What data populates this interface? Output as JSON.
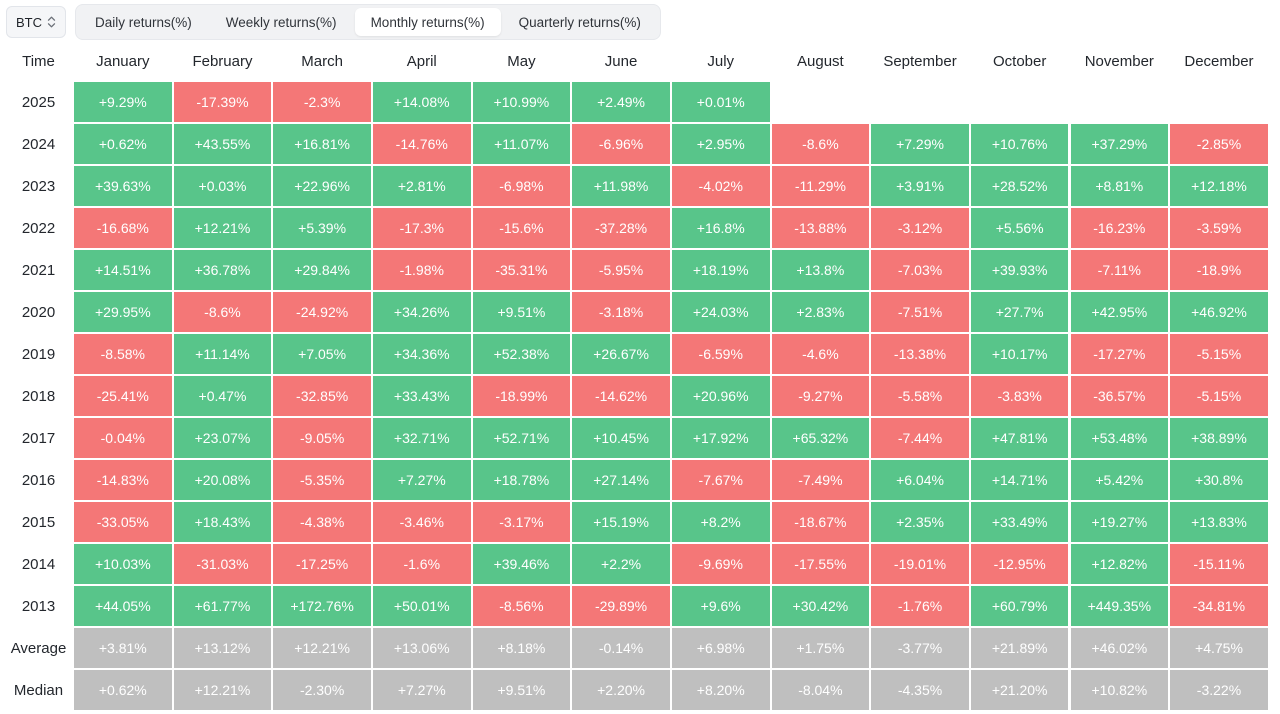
{
  "asset_select": {
    "label": "BTC",
    "icon": "updown-chevron-icon"
  },
  "tabs": [
    {
      "label": "Daily returns(%)",
      "active": false
    },
    {
      "label": "Weekly returns(%)",
      "active": false
    },
    {
      "label": "Monthly returns(%)",
      "active": true
    },
    {
      "label": "Quarterly returns(%)",
      "active": false
    }
  ],
  "colors": {
    "positive": "#58c58a",
    "negative": "#f47777",
    "summary": "#bfbfbf"
  },
  "chart_data": {
    "type": "table",
    "corner_label": "Time",
    "columns": [
      "January",
      "February",
      "March",
      "April",
      "May",
      "June",
      "July",
      "August",
      "September",
      "October",
      "November",
      "December"
    ],
    "rows": [
      {
        "label": "2025",
        "values": [
          "+9.29%",
          "-17.39%",
          "-2.3%",
          "+14.08%",
          "+10.99%",
          "+2.49%",
          "+0.01%",
          null,
          null,
          null,
          null,
          null
        ]
      },
      {
        "label": "2024",
        "values": [
          "+0.62%",
          "+43.55%",
          "+16.81%",
          "-14.76%",
          "+11.07%",
          "-6.96%",
          "+2.95%",
          "-8.6%",
          "+7.29%",
          "+10.76%",
          "+37.29%",
          "-2.85%"
        ]
      },
      {
        "label": "2023",
        "values": [
          "+39.63%",
          "+0.03%",
          "+22.96%",
          "+2.81%",
          "-6.98%",
          "+11.98%",
          "-4.02%",
          "-11.29%",
          "+3.91%",
          "+28.52%",
          "+8.81%",
          "+12.18%"
        ]
      },
      {
        "label": "2022",
        "values": [
          "-16.68%",
          "+12.21%",
          "+5.39%",
          "-17.3%",
          "-15.6%",
          "-37.28%",
          "+16.8%",
          "-13.88%",
          "-3.12%",
          "+5.56%",
          "-16.23%",
          "-3.59%"
        ]
      },
      {
        "label": "2021",
        "values": [
          "+14.51%",
          "+36.78%",
          "+29.84%",
          "-1.98%",
          "-35.31%",
          "-5.95%",
          "+18.19%",
          "+13.8%",
          "-7.03%",
          "+39.93%",
          "-7.11%",
          "-18.9%"
        ]
      },
      {
        "label": "2020",
        "values": [
          "+29.95%",
          "-8.6%",
          "-24.92%",
          "+34.26%",
          "+9.51%",
          "-3.18%",
          "+24.03%",
          "+2.83%",
          "-7.51%",
          "+27.7%",
          "+42.95%",
          "+46.92%"
        ]
      },
      {
        "label": "2019",
        "values": [
          "-8.58%",
          "+11.14%",
          "+7.05%",
          "+34.36%",
          "+52.38%",
          "+26.67%",
          "-6.59%",
          "-4.6%",
          "-13.38%",
          "+10.17%",
          "-17.27%",
          "-5.15%"
        ]
      },
      {
        "label": "2018",
        "values": [
          "-25.41%",
          "+0.47%",
          "-32.85%",
          "+33.43%",
          "-18.99%",
          "-14.62%",
          "+20.96%",
          "-9.27%",
          "-5.58%",
          "-3.83%",
          "-36.57%",
          "-5.15%"
        ]
      },
      {
        "label": "2017",
        "values": [
          "-0.04%",
          "+23.07%",
          "-9.05%",
          "+32.71%",
          "+52.71%",
          "+10.45%",
          "+17.92%",
          "+65.32%",
          "-7.44%",
          "+47.81%",
          "+53.48%",
          "+38.89%"
        ]
      },
      {
        "label": "2016",
        "values": [
          "-14.83%",
          "+20.08%",
          "-5.35%",
          "+7.27%",
          "+18.78%",
          "+27.14%",
          "-7.67%",
          "-7.49%",
          "+6.04%",
          "+14.71%",
          "+5.42%",
          "+30.8%"
        ]
      },
      {
        "label": "2015",
        "values": [
          "-33.05%",
          "+18.43%",
          "-4.38%",
          "-3.46%",
          "-3.17%",
          "+15.19%",
          "+8.2%",
          "-18.67%",
          "+2.35%",
          "+33.49%",
          "+19.27%",
          "+13.83%"
        ]
      },
      {
        "label": "2014",
        "values": [
          "+10.03%",
          "-31.03%",
          "-17.25%",
          "-1.6%",
          "+39.46%",
          "+2.2%",
          "-9.69%",
          "-17.55%",
          "-19.01%",
          "-12.95%",
          "+12.82%",
          "-15.11%"
        ]
      },
      {
        "label": "2013",
        "values": [
          "+44.05%",
          "+61.77%",
          "+172.76%",
          "+50.01%",
          "-8.56%",
          "-29.89%",
          "+9.6%",
          "+30.42%",
          "-1.76%",
          "+60.79%",
          "+449.35%",
          "-34.81%"
        ]
      }
    ],
    "summary_rows": [
      {
        "label": "Average",
        "values": [
          "+3.81%",
          "+13.12%",
          "+12.21%",
          "+13.06%",
          "+8.18%",
          "-0.14%",
          "+6.98%",
          "+1.75%",
          "-3.77%",
          "+21.89%",
          "+46.02%",
          "+4.75%"
        ]
      },
      {
        "label": "Median",
        "values": [
          "+0.62%",
          "+12.21%",
          "-2.30%",
          "+7.27%",
          "+9.51%",
          "+2.20%",
          "+8.20%",
          "-8.04%",
          "-4.35%",
          "+21.20%",
          "+10.82%",
          "-3.22%"
        ]
      }
    ]
  }
}
